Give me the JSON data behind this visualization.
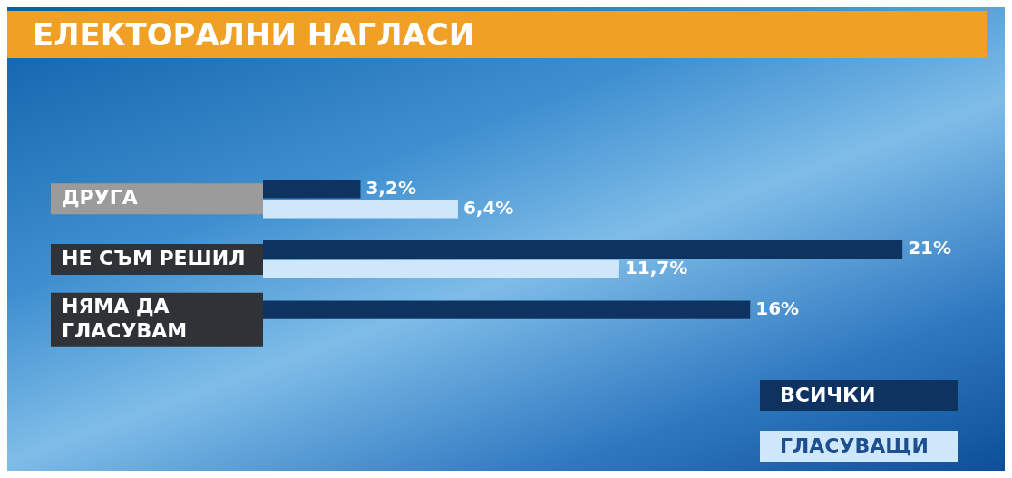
{
  "chart_data": {
    "type": "bar",
    "orientation": "horizontal",
    "title": "ЕЛЕКТОРАЛНИ НАГЛАСИ",
    "categories": [
      "ДРУГА",
      "НЕ СЪМ РЕШИЛ",
      "НЯМА ДА ГЛАСУВАМ"
    ],
    "series": [
      {
        "name": "ВСИЧКИ",
        "color": "#0f3360",
        "values": [
          3.2,
          21,
          16
        ],
        "value_labels": [
          "3,2%",
          "21%",
          "16%"
        ]
      },
      {
        "name": "ГЛАСУВАЩИ",
        "color": "#cfe7fb",
        "values": [
          6.4,
          11.7,
          null
        ],
        "value_labels": [
          "6,4%",
          "11,7%",
          null
        ]
      }
    ],
    "legend": "bottom right"
  }
}
